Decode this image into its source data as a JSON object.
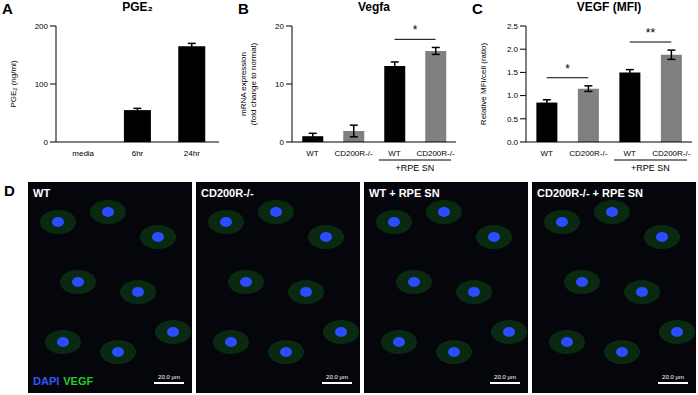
{
  "chart_data": [
    {
      "panel": "A",
      "type": "bar",
      "title": "PGE₂",
      "ylabel": [
        "PGE₂ (ng/ml)"
      ],
      "categories": [
        "media",
        "6hr",
        "24hr"
      ],
      "values": [
        0,
        55,
        165
      ],
      "errors": [
        0,
        3,
        5
      ],
      "color": "#000000",
      "ylim": [
        0,
        200
      ],
      "yticks": [
        0,
        100,
        200
      ]
    },
    {
      "panel": "B",
      "type": "bar",
      "title": "Vegfa",
      "ylabel": [
        "mRNA expression",
        "(fold change to normal)"
      ],
      "categories": [
        "WT",
        "CD200R-/-",
        "WT",
        "CD200R-/-"
      ],
      "values": [
        1.0,
        1.9,
        13.1,
        15.7
      ],
      "errors": [
        0.5,
        1.0,
        0.7,
        0.6
      ],
      "colors": [
        "#000000",
        "#808080",
        "#000000",
        "#808080"
      ],
      "ylim": [
        0,
        20
      ],
      "yticks": [
        0,
        10,
        20
      ],
      "groups": [
        {
          "label": "+RPE SN",
          "from": 2,
          "to": 3
        }
      ],
      "significance": [
        {
          "from": 2,
          "to": 3,
          "label": "*"
        }
      ]
    },
    {
      "panel": "C",
      "type": "bar",
      "title": "VEGF (MFI)",
      "ylabel": [
        "Relative MFI/cell (ratio)"
      ],
      "categories": [
        "WT",
        "CD200R-/-",
        "WT",
        "CD200R-/-"
      ],
      "values": [
        0.85,
        1.15,
        1.5,
        1.88
      ],
      "errors": [
        0.06,
        0.06,
        0.06,
        0.1
      ],
      "colors": [
        "#000000",
        "#808080",
        "#000000",
        "#808080"
      ],
      "ylim": [
        0,
        2.5
      ],
      "yticks": [
        {
          "value": 0,
          "label": "0.0"
        },
        {
          "value": 0.5,
          "label": "0.5"
        },
        {
          "value": 1,
          "label": "1.0"
        },
        {
          "value": 1.5,
          "label": "1.5"
        },
        {
          "value": 2,
          "label": "2.0"
        },
        {
          "value": 2.5,
          "label": "2.5"
        }
      ],
      "groups": [
        {
          "label": "+RPE SN",
          "from": 2,
          "to": 3
        }
      ],
      "significance": [
        {
          "from": 0,
          "to": 1,
          "label": "*"
        },
        {
          "from": 2,
          "to": 3,
          "label": "**"
        }
      ]
    }
  ],
  "panel_d": {
    "panel": "D",
    "images": [
      "WT",
      "CD200R-/-",
      "WT + RPE SN",
      "CD200R-/- + RPE SN"
    ],
    "stain_labels": [
      {
        "text": "DAPI",
        "color": "#3355ff"
      },
      {
        "text": "VEGF",
        "color": "#22cc22"
      }
    ],
    "scale_bar": "20.0 µm"
  }
}
